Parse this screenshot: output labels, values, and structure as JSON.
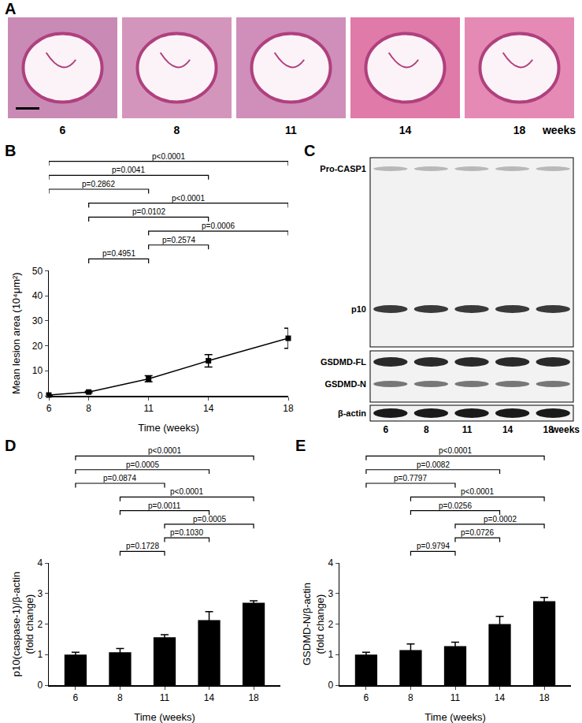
{
  "images": {
    "panel": "A",
    "lanes": [
      "6",
      "8",
      "11",
      "14",
      "18"
    ],
    "unit": "weeks"
  },
  "blot": {
    "panel": "C",
    "rows": [
      "Pro-CASP1",
      "p10",
      "GSDMD-FL",
      "GSDMD-N",
      "β-actin"
    ],
    "lanes": [
      "6",
      "8",
      "11",
      "14",
      "18"
    ],
    "unit": "weeks"
  },
  "chart_data": [
    {
      "panel": "B",
      "type": "line",
      "marker": "square",
      "color": "#000000",
      "x": [
        6,
        8,
        11,
        14,
        18
      ],
      "values": [
        0.3,
        1.5,
        6.8,
        14,
        23
      ],
      "errors": [
        0.1,
        0.3,
        1.2,
        2.5,
        4
      ],
      "xlabel": "Time (weeks)",
      "ylabel": "Mean lesion area (10⁴μm²)",
      "xlim": [
        6,
        18
      ],
      "xticks": [
        6,
        8,
        11,
        14,
        18
      ],
      "ylim": [
        0,
        50
      ],
      "yticks": [
        0,
        10,
        20,
        30,
        40,
        50
      ],
      "comparisons": [
        {
          "pair": [
            6,
            18
          ],
          "label": "p<0.0001"
        },
        {
          "pair": [
            6,
            14
          ],
          "label": "p=0.0041"
        },
        {
          "pair": [
            6,
            11
          ],
          "label": "p=0.2862"
        },
        {
          "pair": [
            8,
            18
          ],
          "label": "p<0.0001"
        },
        {
          "pair": [
            8,
            14
          ],
          "label": "p=0.0102"
        },
        {
          "pair": [
            11,
            18
          ],
          "label": "p=0.0006"
        },
        {
          "pair": [
            11,
            14
          ],
          "label": "p=0.2574"
        },
        {
          "pair": [
            8,
            11
          ],
          "label": "p=0.4951"
        }
      ]
    },
    {
      "panel": "D",
      "type": "bar",
      "color": "#000000",
      "categories": [
        "6",
        "8",
        "11",
        "14",
        "18"
      ],
      "values": [
        1.0,
        1.08,
        1.57,
        2.13,
        2.7
      ],
      "errors": [
        0.08,
        0.12,
        0.08,
        0.28,
        0.06
      ],
      "xlabel": "Time (weeks)",
      "ylabel": "p10(caspase-1)/β-actin\n(fold change)",
      "ylim": [
        0,
        4
      ],
      "yticks": [
        0,
        1,
        2,
        3,
        4
      ],
      "comparisons": [
        {
          "pair": [
            "6",
            "18"
          ],
          "label": "p<0.0001"
        },
        {
          "pair": [
            "6",
            "14"
          ],
          "label": "p=0.0005"
        },
        {
          "pair": [
            "6",
            "11"
          ],
          "label": "p=0.0874"
        },
        {
          "pair": [
            "8",
            "18"
          ],
          "label": "p<0.0001"
        },
        {
          "pair": [
            "8",
            "14"
          ],
          "label": "p=0.0011"
        },
        {
          "pair": [
            "11",
            "18"
          ],
          "label": "p=0.0005"
        },
        {
          "pair": [
            "11",
            "14"
          ],
          "label": "p=0.1030"
        },
        {
          "pair": [
            "8",
            "11"
          ],
          "label": "p=0.1728"
        }
      ]
    },
    {
      "panel": "E",
      "type": "bar",
      "color": "#000000",
      "categories": [
        "6",
        "8",
        "11",
        "14",
        "18"
      ],
      "values": [
        1.0,
        1.15,
        1.28,
        2.0,
        2.75
      ],
      "errors": [
        0.08,
        0.2,
        0.13,
        0.25,
        0.12
      ],
      "xlabel": "Time (weeks)",
      "ylabel": "GSDMD-N/β-actin\n(fold change)",
      "ylim": [
        0,
        4
      ],
      "yticks": [
        0,
        1,
        2,
        3,
        4
      ],
      "comparisons": [
        {
          "pair": [
            "6",
            "18"
          ],
          "label": "p<0.0001"
        },
        {
          "pair": [
            "6",
            "14"
          ],
          "label": "p=0.0082"
        },
        {
          "pair": [
            "6",
            "11"
          ],
          "label": "p=0.7797"
        },
        {
          "pair": [
            "8",
            "18"
          ],
          "label": "p<0.0001"
        },
        {
          "pair": [
            "8",
            "14"
          ],
          "label": "p=0.0256"
        },
        {
          "pair": [
            "11",
            "18"
          ],
          "label": "p=0.0002"
        },
        {
          "pair": [
            "11",
            "14"
          ],
          "label": "p=0.0726"
        },
        {
          "pair": [
            "8",
            "11"
          ],
          "label": "p=0.9794"
        }
      ]
    }
  ]
}
